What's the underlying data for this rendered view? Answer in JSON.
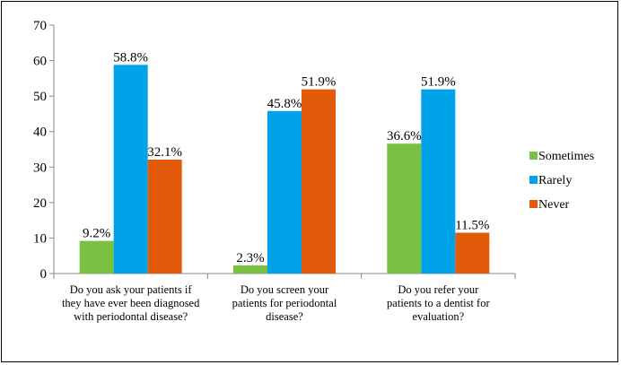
{
  "chart_data": {
    "type": "bar",
    "categories": [
      [
        "Do you ask your patients if",
        "they have ever been diagnosed",
        "with periodontal disease?"
      ],
      [
        "Do you screen your",
        "patients for periodontal",
        "disease?"
      ],
      [
        "Do you refer your",
        "patients to a dentist for",
        "evaluation?"
      ]
    ],
    "series": [
      {
        "name": "Sometimes",
        "color": "#7ac143",
        "values": [
          9.2,
          2.3,
          36.6
        ],
        "labels": [
          "9.2%",
          "2.3%",
          "36.6%"
        ]
      },
      {
        "name": "Rarely",
        "color": "#00a2e8",
        "values": [
          58.8,
          45.8,
          51.9
        ],
        "labels": [
          "58.8%",
          "45.8%",
          "51.9%"
        ]
      },
      {
        "name": "Never",
        "color": "#e35b0a",
        "values": [
          32.1,
          51.9,
          11.5
        ],
        "labels": [
          "32.1%",
          "51.9%",
          "11.5%"
        ]
      }
    ],
    "ylim": [
      0,
      70
    ],
    "yticks": [
      "0",
      "10",
      "20",
      "30",
      "40",
      "50",
      "60",
      "70"
    ],
    "title": "",
    "xlabel": "",
    "ylabel": "",
    "legend_position": "right",
    "grid": false
  }
}
